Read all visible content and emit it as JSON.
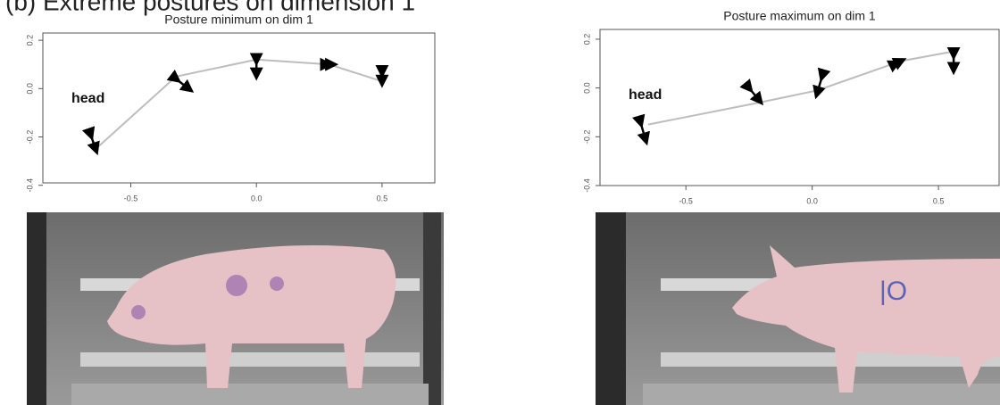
{
  "figure_title": "(b) Extreme postures on dimension 1",
  "chart_data": [
    {
      "type": "line",
      "title": "Posture minimum on dim 1",
      "annotation": "head",
      "x": [
        -0.64,
        -0.32,
        0.0,
        0.29,
        0.5
      ],
      "series": [
        {
          "color": "#bdbdbd",
          "values": [
            -0.25,
            0.05,
            0.12,
            0.1,
            0.03
          ]
        }
      ],
      "arrows": [
        [
          -0.66,
          -0.19,
          -0.64,
          -0.25
        ],
        [
          -0.32,
          0.04,
          -0.27,
          0.0
        ],
        [
          0.0,
          0.12,
          0.0,
          0.06
        ],
        [
          0.28,
          0.1,
          0.3,
          0.1
        ],
        [
          0.5,
          0.07,
          0.5,
          0.03
        ]
      ],
      "xlim": [
        -0.85,
        0.71
      ],
      "ylim": [
        -0.39,
        0.23
      ],
      "xticks": [
        -0.5,
        {
          "value": 0,
          "label": "0.0"
        },
        0.5
      ],
      "yticks": [
        -0.4,
        -0.2,
        {
          "value": 0,
          "label": "0.0"
        },
        0.2
      ]
    },
    {
      "type": "line",
      "title": "Posture maximum on dim 1",
      "annotation": "head",
      "x": [
        -0.65,
        -0.21,
        0.02,
        0.35,
        0.56
      ],
      "series": [
        {
          "color": "#bdbdbd",
          "values": [
            -0.15,
            -0.06,
            -0.01,
            0.11,
            0.15
          ]
        }
      ],
      "arrows": [
        [
          -0.68,
          -0.14,
          -0.66,
          -0.21
        ],
        [
          -0.25,
          0.0,
          -0.21,
          -0.05
        ],
        [
          0.04,
          0.05,
          0.02,
          -0.02
        ],
        [
          0.33,
          0.1,
          0.35,
          0.11
        ],
        [
          0.56,
          0.14,
          0.56,
          0.08
        ]
      ],
      "xlim": [
        -0.84,
        0.74
      ],
      "ylim": [
        -0.4,
        0.24
      ],
      "xticks": [
        -0.5,
        {
          "value": 0,
          "label": "0.0"
        },
        0.5
      ],
      "yticks": [
        -0.4,
        -0.2,
        {
          "value": 0,
          "label": "0.0"
        },
        0.2
      ]
    }
  ]
}
